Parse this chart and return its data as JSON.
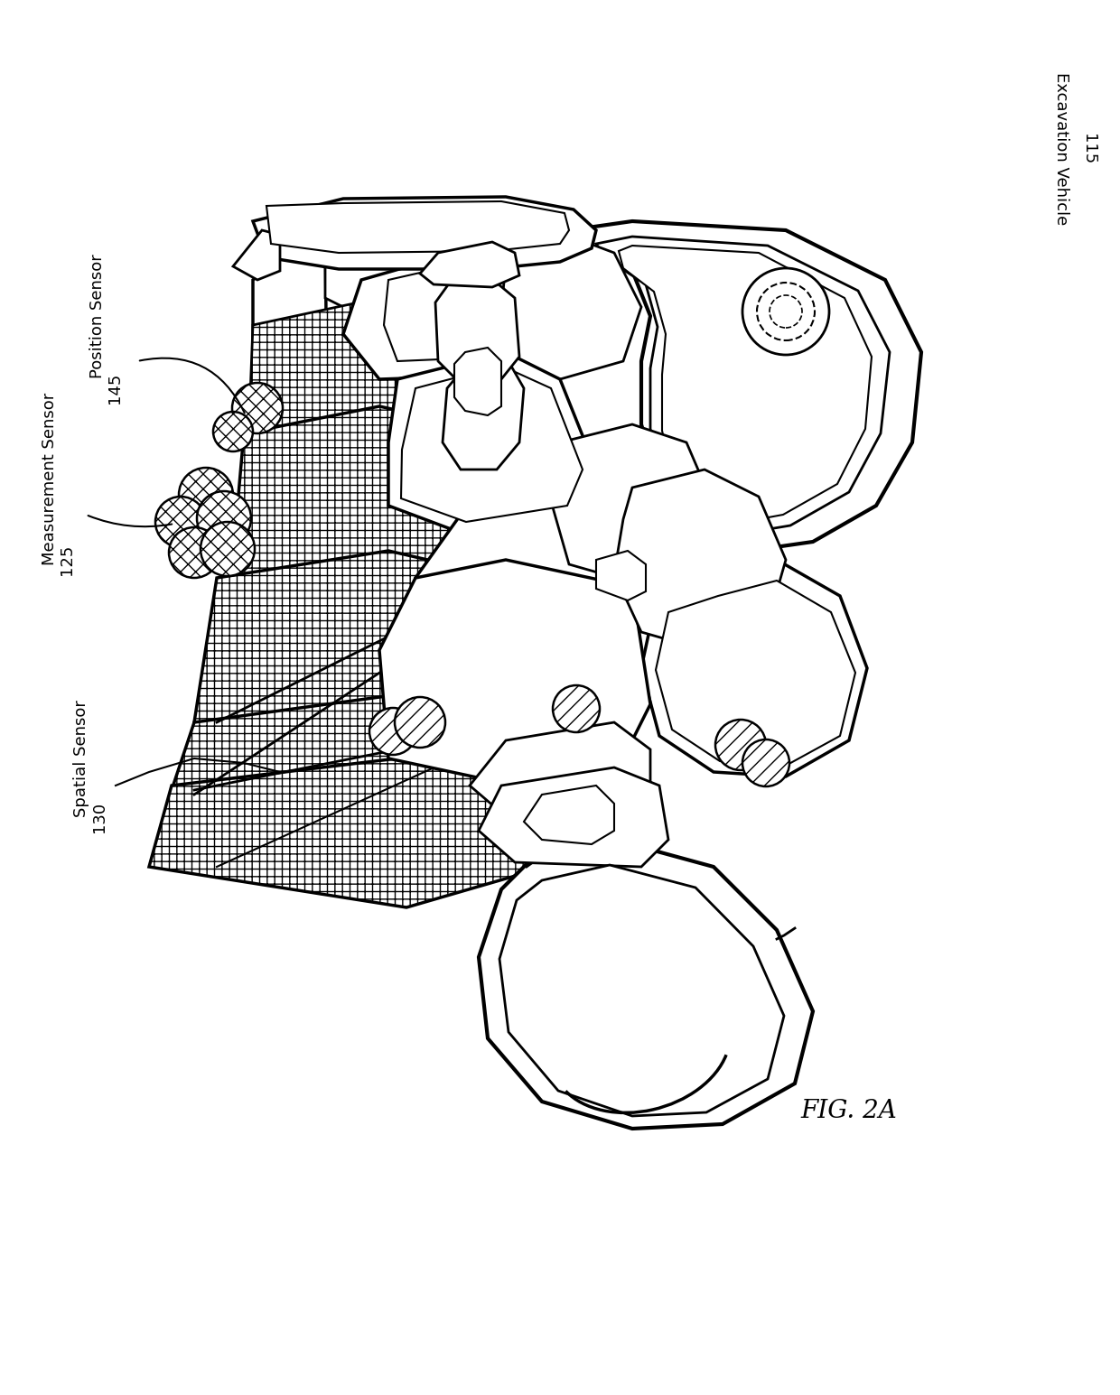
{
  "background_color": "#ffffff",
  "line_color": "#000000",
  "label_excavation_vehicle": "Excavation Vehicle",
  "label_excavation_vehicle_num": "115",
  "label_position_sensor": "Position Sensor",
  "label_position_sensor_num": "145",
  "label_measurement_sensor": "Measurement Sensor",
  "label_measurement_sensor_num": "125",
  "label_spatial_sensor": "Spatial Sensor",
  "label_spatial_sensor_num": "130",
  "fig_label": "FIG. 2A",
  "font_size_labels": 13,
  "font_size_numbers": 13,
  "font_size_fig": 20
}
